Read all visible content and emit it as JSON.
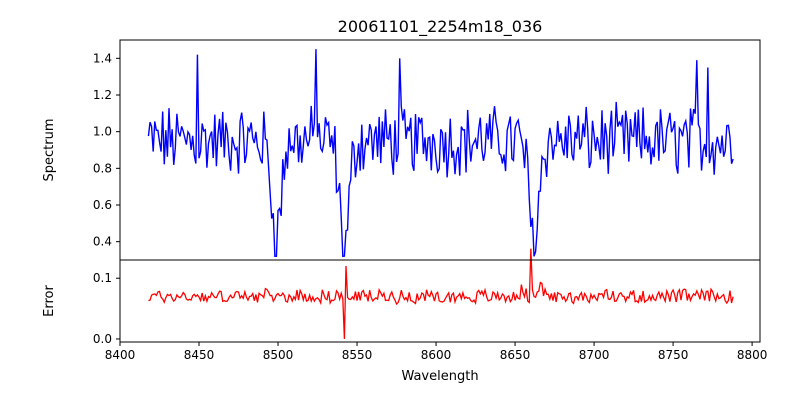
{
  "figure": {
    "title": "20061101_2254m18_036"
  },
  "chart_data": [
    {
      "type": "line",
      "name": "spectrum-panel",
      "title": "20061101_2254m18_036",
      "xlabel": "",
      "ylabel": "Spectrum",
      "xlim": [
        8400,
        8805
      ],
      "ylim": [
        0.3,
        1.5
      ],
      "xticks": [
        8400,
        8450,
        8500,
        8550,
        8600,
        8650,
        8700,
        8750,
        8800
      ],
      "yticks": [
        0.4,
        0.6,
        0.8,
        1.0,
        1.2,
        1.4
      ],
      "ytick_labels": [
        "0.4",
        "0.6",
        "0.8",
        "1.0",
        "1.2",
        "1.4"
      ],
      "grid": false,
      "series": [
        {
          "color": "#0000ff",
          "x_range": [
            8418,
            8788
          ],
          "x_step": 1.0,
          "features": [
            {
              "x": 8499,
              "y": 0.43
            },
            {
              "x": 8542,
              "y": 0.36
            },
            {
              "x": 8662,
              "y": 0.4
            }
          ],
          "peaks": [
            {
              "x": 8449,
              "y": 1.42
            },
            {
              "x": 8524,
              "y": 1.45
            },
            {
              "x": 8577,
              "y": 1.4
            },
            {
              "x": 8765,
              "y": 1.39
            },
            {
              "x": 8772,
              "y": 1.35
            }
          ]
        }
      ]
    },
    {
      "type": "line",
      "name": "error-panel",
      "xlabel": "Wavelength",
      "ylabel": "Error",
      "xlim": [
        8400,
        8805
      ],
      "ylim": [
        -0.005,
        0.13
      ],
      "xticks": [
        8400,
        8450,
        8500,
        8550,
        8600,
        8650,
        8700,
        8750,
        8800
      ],
      "xtick_labels": [
        "8400",
        "8450",
        "8500",
        "8550",
        "8600",
        "8650",
        "8700",
        "8750",
        "8800"
      ],
      "yticks": [
        0.0,
        0.1
      ],
      "ytick_labels": [
        "0.0",
        "0.1"
      ],
      "grid": false,
      "series": [
        {
          "color": "#ff0000",
          "x_range": [
            8418,
            8788
          ],
          "x_step": 1.0,
          "baseline": 0.07,
          "features": [
            {
              "x": 8542,
              "y": 0.0
            },
            {
              "x": 8543,
              "y": 0.12
            },
            {
              "x": 8660,
              "y": 0.13
            }
          ]
        }
      ]
    }
  ]
}
